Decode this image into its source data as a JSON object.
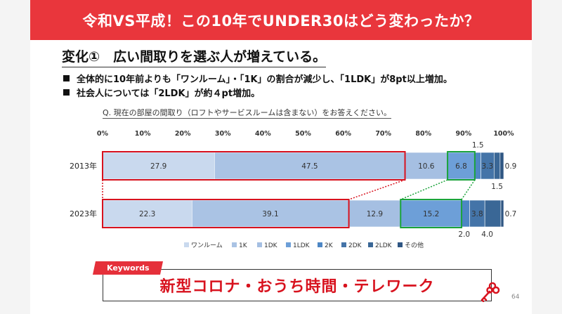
{
  "header": {
    "title": "令和VS平成！この10年でUNDER30はどう変わったか？"
  },
  "heading": "変化①　広い間取りを選ぶ人が増えている。",
  "bullets": [
    "全体的に10年前よりも「ワンルーム」・「1K」の割合が減少し、「1LDK」が8pt以上増加。",
    "社会人については「2LDK」が約４pt増加。"
  ],
  "question": "Q. 現在の部屋の間取り（ロフトやサービスルームは含まない）をお答えください。",
  "keywords": {
    "tag": "Keywords",
    "text": "新型コロナ・おうち時間・テレワーク"
  },
  "page_number": "64",
  "colors": {
    "banner": "#e9363c",
    "highlight_red": "#d8121e",
    "highlight_green": "#1aa33a",
    "segments": [
      "#c9d9ee",
      "#aac3e4",
      "#a5bfe2",
      "#6d9fd8",
      "#4d86c4",
      "#4474a8",
      "#3a6796",
      "#2f5683"
    ]
  },
  "chart_data": {
    "type": "bar",
    "orientation": "horizontal",
    "stacked": true,
    "categories": [
      "2013年",
      "2023年"
    ],
    "x_ticks": [
      "0%",
      "10%",
      "20%",
      "30%",
      "40%",
      "50%",
      "60%",
      "70%",
      "80%",
      "90%",
      "100%"
    ],
    "xlim": [
      0,
      100
    ],
    "series": [
      {
        "name": "ワンルーム",
        "values": [
          27.9,
          22.3
        ]
      },
      {
        "name": "1K",
        "values": [
          47.5,
          39.1
        ]
      },
      {
        "name": "1DK",
        "values": [
          10.6,
          12.9
        ]
      },
      {
        "name": "1LDK",
        "values": [
          6.8,
          15.2
        ]
      },
      {
        "name": "2K",
        "values": [
          1.5,
          2.0
        ]
      },
      {
        "name": "2DK",
        "values": [
          3.3,
          3.8
        ]
      },
      {
        "name": "2LDK",
        "values": [
          1.5,
          4.0
        ]
      },
      {
        "name": "その他",
        "values": [
          0.9,
          0.7
        ]
      }
    ],
    "label_texts": [
      [
        "27.9",
        "47.5",
        "10.6",
        "6.8",
        "1.5",
        "3.3",
        "1.5",
        "0.9"
      ],
      [
        "22.3",
        "39.1",
        "12.9",
        "15.2",
        "2.0",
        "3.8",
        "4.0",
        "0.7"
      ]
    ],
    "legend_position": "bottom",
    "grid": false
  }
}
